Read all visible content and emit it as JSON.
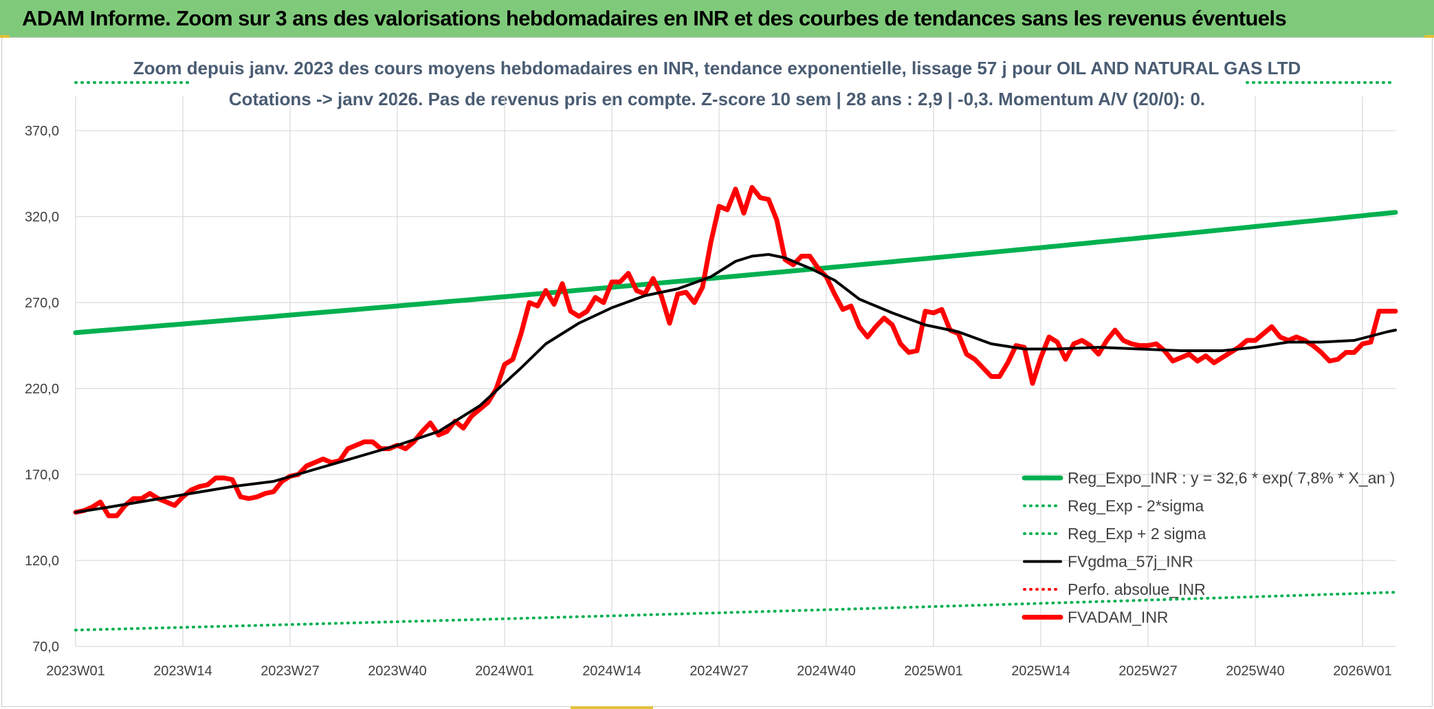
{
  "banner": {
    "title": "ADAM Informe. Zoom sur 3 ans des valorisations hebdomadaires en INR et des courbes de tendances sans les revenus éventuels"
  },
  "colors": {
    "banner_bg": "#7fca7a",
    "reg_expo": "#00b050",
    "sigma": "#00b050",
    "fvgdma": "#000000",
    "perfo": "#ff0000",
    "fvadam": "#ff0000",
    "grid": "#d9d9d9"
  },
  "chart_data": {
    "type": "line",
    "title": "Zoom depuis janv. 2023 des cours moyens hebdomadaires en INR, tendance exponentielle, lissage 57 j pour OIL AND NATURAL GAS LTD",
    "subtitle": "Cotations -> janv 2026. Pas de revenus pris en compte. Z-score 10 sem | 28 ans : 2,9 | -0,3. Momentum A/V (20/0): 0.",
    "xlabel": "",
    "ylabel": "",
    "x_range": [
      1,
      161
    ],
    "ylim": [
      70,
      390
    ],
    "y_ticks": [
      "70,0",
      "120,0",
      "170,0",
      "220,0",
      "270,0",
      "320,0",
      "370,0"
    ],
    "y_tick_values": [
      70,
      120,
      170,
      220,
      270,
      320,
      370
    ],
    "x_ticks": [
      "2023W01",
      "2023W14",
      "2023W27",
      "2023W40",
      "2024W01",
      "2024W14",
      "2024W27",
      "2024W40",
      "2025W01",
      "2025W14",
      "2025W27",
      "2025W40",
      "2026W01"
    ],
    "x_tick_positions": [
      1,
      14,
      27,
      40,
      53,
      66,
      79,
      92,
      105,
      118,
      131,
      144,
      157
    ],
    "grid": true,
    "legend_position": "bottom-right",
    "series": [
      {
        "name": "Reg_Expo_INR : y = 32,6 * exp( 7,8% *  X_an )",
        "style": "solid-thick",
        "color": "#00b050",
        "x": [
          1,
          161
        ],
        "values": [
          252.5,
          322.5
        ],
        "curve": "exp"
      },
      {
        "name": "Reg_Exp - 2*sigma",
        "style": "dotted",
        "color": "#00b050",
        "x": [
          1,
          161
        ],
        "values": [
          79.5,
          101.5
        ],
        "curve": "exp"
      },
      {
        "name": "Reg_Exp + 2 sigma",
        "style": "dotted",
        "color": "#00b050",
        "x": [
          1,
          15,
          143,
          161
        ],
        "values": [
          398,
          398,
          398,
          398
        ],
        "segments": [
          [
            1,
            15
          ],
          [
            143,
            161
          ]
        ]
      },
      {
        "name": "FVgdma_57j_INR",
        "style": "solid",
        "color": "#000000",
        "x": [
          1,
          5,
          10,
          15,
          20,
          25,
          30,
          35,
          40,
          45,
          50,
          55,
          58,
          62,
          66,
          70,
          74,
          78,
          81,
          83,
          85,
          87,
          90,
          93,
          96,
          100,
          104,
          108,
          112,
          116,
          120,
          125,
          130,
          135,
          140,
          144,
          148,
          152,
          156,
          160,
          161
        ],
        "values": [
          148,
          151,
          155,
          159,
          163,
          166,
          173,
          180,
          187,
          195,
          210,
          232,
          246,
          258,
          267,
          274,
          278,
          285,
          294,
          297,
          298,
          296,
          290,
          283,
          272,
          264,
          257,
          253,
          246,
          243,
          243,
          244,
          243,
          242,
          242,
          244,
          247,
          247,
          248,
          253,
          254
        ]
      },
      {
        "name": "Perfo. absolue_INR",
        "style": "dotted",
        "color": "#ff0000",
        "x": [],
        "values": []
      },
      {
        "name": "FVADAM_INR",
        "style": "solid-thick",
        "color": "#ff0000",
        "x": [
          1,
          2,
          3,
          4,
          5,
          6,
          7,
          8,
          9,
          10,
          11,
          12,
          13,
          14,
          15,
          16,
          17,
          18,
          19,
          20,
          21,
          22,
          23,
          24,
          25,
          26,
          27,
          28,
          29,
          30,
          31,
          32,
          33,
          34,
          35,
          36,
          37,
          38,
          39,
          40,
          41,
          42,
          43,
          44,
          45,
          46,
          47,
          48,
          49,
          50,
          51,
          52,
          53,
          54,
          55,
          56,
          57,
          58,
          59,
          60,
          61,
          62,
          63,
          64,
          65,
          66,
          67,
          68,
          69,
          70,
          71,
          72,
          73,
          74,
          75,
          76,
          77,
          78,
          79,
          80,
          81,
          82,
          83,
          84,
          85,
          86,
          87,
          88,
          89,
          90,
          91,
          92,
          93,
          94,
          95,
          96,
          97,
          98,
          99,
          100,
          101,
          102,
          103,
          104,
          105,
          106,
          107,
          108,
          109,
          110,
          111,
          112,
          113,
          114,
          115,
          116,
          117,
          118,
          119,
          120,
          121,
          122,
          123,
          124,
          125,
          126,
          127,
          128,
          129,
          130,
          131,
          132,
          133,
          134,
          135,
          136,
          137,
          138,
          139,
          140,
          141,
          142,
          143,
          144,
          145,
          146,
          147,
          148,
          149,
          150,
          151,
          152,
          153,
          154,
          155,
          156,
          157,
          158,
          159,
          160,
          161
        ],
        "values": [
          148,
          149,
          151,
          154,
          146,
          146,
          152,
          156,
          156,
          159,
          156,
          154,
          152,
          157,
          161,
          163,
          164,
          168,
          168,
          167,
          157,
          156,
          157,
          159,
          160,
          166,
          169,
          170,
          175,
          177,
          179,
          177,
          178,
          185,
          187,
          189,
          189,
          185,
          185,
          187,
          185,
          189,
          195,
          200,
          193,
          195,
          201,
          197,
          204,
          208,
          212,
          220,
          234,
          237,
          252,
          270,
          268,
          277,
          269,
          281,
          265,
          262,
          265,
          273,
          270,
          282,
          282,
          287,
          277,
          275,
          284,
          274,
          258,
          275,
          276,
          270,
          279,
          305,
          326,
          324,
          336,
          322,
          337,
          331,
          330,
          318,
          295,
          292,
          297,
          297,
          290,
          285,
          275,
          266,
          268,
          256,
          250,
          256,
          261,
          257,
          246,
          241,
          242,
          265,
          264,
          266,
          254,
          252,
          240,
          237,
          232,
          227,
          227,
          235,
          245,
          244,
          223,
          238,
          250,
          247,
          237,
          246,
          248,
          245,
          240,
          248,
          254,
          248,
          246,
          245,
          245,
          246,
          242,
          236,
          238,
          240,
          236,
          239,
          235,
          238,
          241,
          244,
          248,
          248,
          252,
          256,
          250,
          248,
          250,
          248,
          245,
          241,
          236,
          237,
          241,
          241,
          246,
          247,
          265,
          265,
          265
        ]
      }
    ]
  }
}
